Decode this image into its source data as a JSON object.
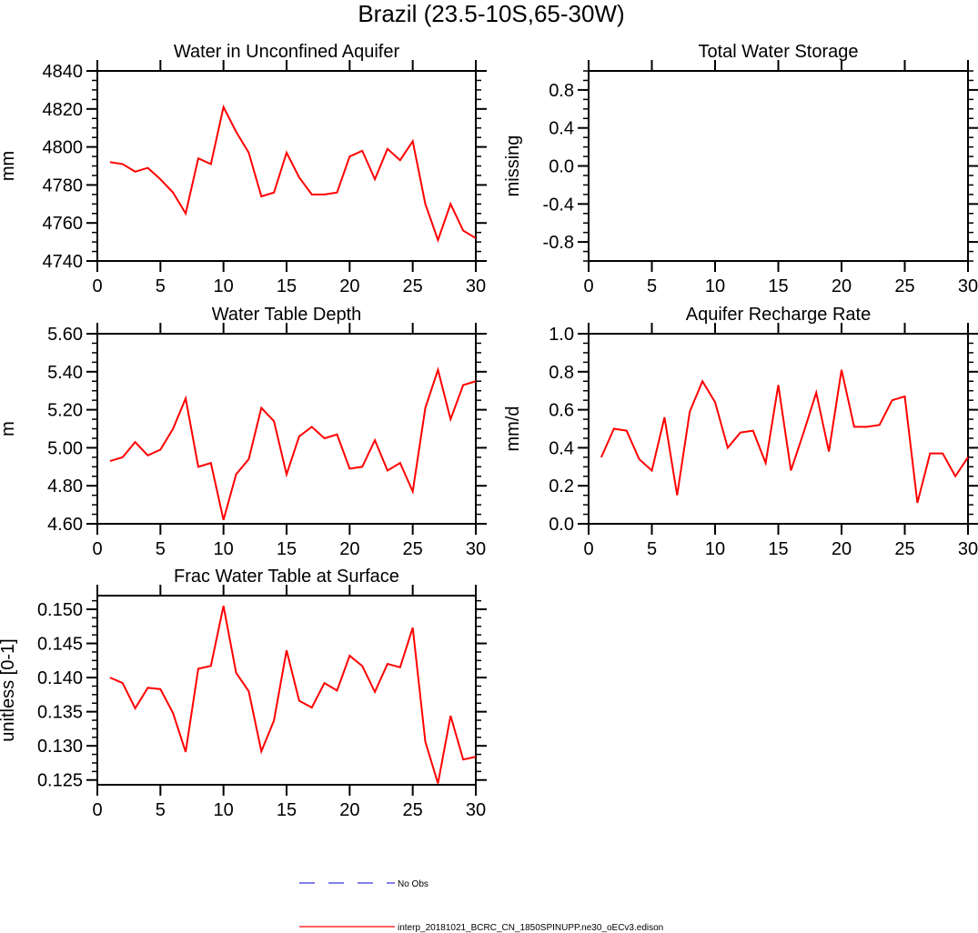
{
  "title": "Brazil (23.5-10S,65-30W)",
  "legend": {
    "obs_label": "No Obs",
    "obs_color": "#0000cc",
    "model_label": "interp_20181021_BCRC_CN_1850SPINUPP.ne30_oECv3.edison",
    "model_color": "#ff0000"
  },
  "chart_data": [
    {
      "type": "line",
      "title": "Water in Unconfined Aquifer",
      "ylabel": "mm",
      "xlim": [
        0,
        30
      ],
      "ylim": [
        4740,
        4840
      ],
      "xticks": [
        "0",
        "5",
        "10",
        "15",
        "20",
        "25",
        "30"
      ],
      "yticks": [
        "4740",
        "4760",
        "4780",
        "4800",
        "4820",
        "4840"
      ],
      "ytickvals": [
        4740,
        4760,
        4780,
        4800,
        4820,
        4840
      ],
      "x": [
        1,
        2,
        3,
        4,
        5,
        6,
        7,
        8,
        9,
        10,
        11,
        12,
        13,
        14,
        15,
        16,
        17,
        18,
        19,
        20,
        21,
        22,
        23,
        24,
        25,
        26,
        27,
        28,
        29,
        30
      ],
      "values": [
        4792,
        4791,
        4787,
        4789,
        4783,
        4776,
        4765,
        4794,
        4791,
        4821,
        4808,
        4797,
        4774,
        4776,
        4797,
        4784,
        4775,
        4775,
        4776,
        4795,
        4798,
        4783,
        4799,
        4793,
        4803,
        4770,
        4751,
        4770,
        4756,
        4752
      ]
    },
    {
      "type": "line",
      "title": "Total Water Storage",
      "ylabel": "missing",
      "xlim": [
        0,
        30
      ],
      "ylim": [
        -1,
        1
      ],
      "xticks": [
        "0",
        "5",
        "10",
        "15",
        "20",
        "25",
        "30"
      ],
      "yticks": [
        "-0.8",
        "-0.4",
        "0.0",
        "0.4",
        "0.8"
      ],
      "ytickvals": [
        -0.8,
        -0.4,
        0,
        0.4,
        0.8
      ],
      "x": [],
      "values": []
    },
    {
      "type": "line",
      "title": "Water Table Depth",
      "ylabel": "m",
      "xlim": [
        0,
        30
      ],
      "ylim": [
        4.6,
        5.6
      ],
      "xticks": [
        "0",
        "5",
        "10",
        "15",
        "20",
        "25",
        "30"
      ],
      "yticks": [
        "4.60",
        "4.80",
        "5.00",
        "5.20",
        "5.40",
        "5.60"
      ],
      "ytickvals": [
        4.6,
        4.8,
        5.0,
        5.2,
        5.4,
        5.6
      ],
      "x": [
        1,
        2,
        3,
        4,
        5,
        6,
        7,
        8,
        9,
        10,
        11,
        12,
        13,
        14,
        15,
        16,
        17,
        18,
        19,
        20,
        21,
        22,
        23,
        24,
        25,
        26,
        27,
        28,
        29,
        30
      ],
      "values": [
        4.93,
        4.95,
        5.03,
        4.96,
        4.99,
        5.1,
        5.26,
        4.9,
        4.92,
        4.62,
        4.86,
        4.94,
        5.21,
        5.14,
        4.86,
        5.06,
        5.11,
        5.05,
        5.07,
        4.89,
        4.9,
        5.04,
        4.88,
        4.92,
        4.77,
        5.21,
        5.41,
        5.15,
        5.33,
        5.35
      ]
    },
    {
      "type": "line",
      "title": "Aquifer Recharge Rate",
      "ylabel": "mm/d",
      "xlim": [
        0,
        30
      ],
      "ylim": [
        0,
        1
      ],
      "xticks": [
        "0",
        "5",
        "10",
        "15",
        "20",
        "25",
        "30"
      ],
      "yticks": [
        "0.0",
        "0.2",
        "0.4",
        "0.6",
        "0.8",
        "1.0"
      ],
      "ytickvals": [
        0,
        0.2,
        0.4,
        0.6,
        0.8,
        1.0
      ],
      "x": [
        1,
        2,
        3,
        4,
        5,
        6,
        7,
        8,
        9,
        10,
        11,
        12,
        13,
        14,
        15,
        16,
        17,
        18,
        19,
        20,
        21,
        22,
        23,
        24,
        25,
        26,
        27,
        28,
        29,
        30
      ],
      "values": [
        0.35,
        0.5,
        0.49,
        0.34,
        0.28,
        0.56,
        0.15,
        0.59,
        0.75,
        0.64,
        0.4,
        0.48,
        0.49,
        0.32,
        0.73,
        0.28,
        0.48,
        0.69,
        0.38,
        0.81,
        0.51,
        0.51,
        0.52,
        0.65,
        0.67,
        0.11,
        0.37,
        0.37,
        0.25,
        0.35
      ]
    },
    {
      "type": "line",
      "title": "Frac Water Table at Surface",
      "ylabel": "unitless [0-1]",
      "xlim": [
        0,
        30
      ],
      "ylim": [
        0.1243,
        0.152
      ],
      "xticks": [
        "0",
        "5",
        "10",
        "15",
        "20",
        "25",
        "30"
      ],
      "yticks": [
        "0.125",
        "0.130",
        "0.135",
        "0.140",
        "0.145",
        "0.150"
      ],
      "ytickvals": [
        0.125,
        0.13,
        0.135,
        0.14,
        0.145,
        0.15
      ],
      "x": [
        1,
        2,
        3,
        4,
        5,
        6,
        7,
        8,
        9,
        10,
        11,
        12,
        13,
        14,
        15,
        16,
        17,
        18,
        19,
        20,
        21,
        22,
        23,
        24,
        25,
        26,
        27,
        28,
        29,
        30
      ],
      "values": [
        0.14,
        0.1392,
        0.1355,
        0.1385,
        0.1383,
        0.1348,
        0.1291,
        0.1413,
        0.1417,
        0.1505,
        0.1407,
        0.138,
        0.1292,
        0.1337,
        0.144,
        0.1366,
        0.1356,
        0.1392,
        0.1381,
        0.1432,
        0.1417,
        0.1379,
        0.142,
        0.1415,
        0.1473,
        0.1306,
        0.1245,
        0.1344,
        0.128,
        0.1284
      ]
    }
  ]
}
